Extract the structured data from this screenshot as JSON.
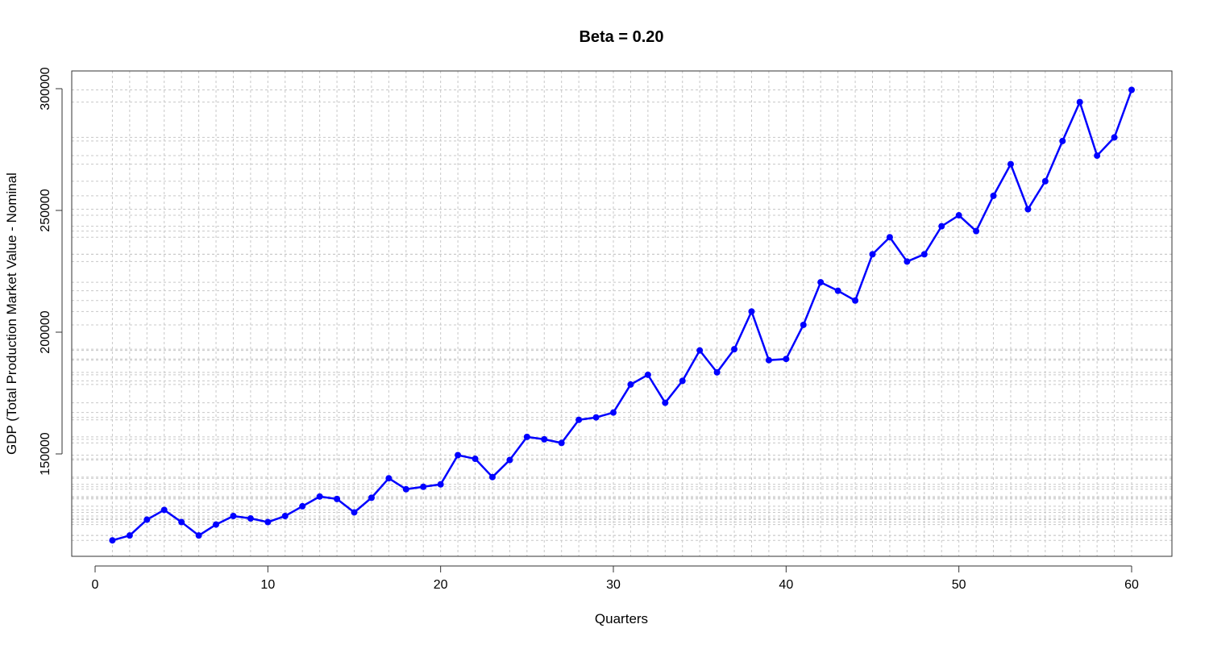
{
  "chart_data": {
    "type": "line",
    "title": "Beta = 0.20",
    "xlabel": "Quarters",
    "ylabel": "GDP (Total Production Market Value - Nominal",
    "xlim": [
      0,
      62
    ],
    "ylim": [
      114000,
      307000
    ],
    "x_ticks": [
      0,
      10,
      20,
      30,
      40,
      50,
      60
    ],
    "y_ticks": [
      150000,
      200000,
      250000,
      300000
    ],
    "grid": true,
    "series_color": "#0000ff",
    "grid_color": "#c8c8c8",
    "x": [
      1,
      2,
      3,
      4,
      5,
      6,
      7,
      8,
      9,
      10,
      11,
      12,
      13,
      14,
      15,
      16,
      17,
      18,
      19,
      20,
      21,
      22,
      23,
      24,
      25,
      26,
      27,
      28,
      29,
      30,
      31,
      32,
      33,
      34,
      35,
      36,
      37,
      38,
      39,
      40,
      41,
      42,
      43,
      44,
      45,
      46,
      47,
      48,
      49,
      50,
      51,
      52,
      53,
      54,
      55,
      56,
      57,
      58,
      59,
      60
    ],
    "series": [
      {
        "values": [
          114500,
          116500,
          123000,
          127000,
          122000,
          116500,
          121000,
          124500,
          123500,
          122000,
          124500,
          128500,
          132500,
          131500,
          126000,
          132000,
          140000,
          135500,
          136500,
          137500,
          149500,
          148000,
          140500,
          147500,
          157000,
          156000,
          154500,
          164000,
          165000,
          167000,
          178500,
          182500,
          171000,
          180000,
          192500,
          183500,
          193000,
          208500,
          188500,
          189000,
          203000,
          220500,
          217000,
          213000,
          232000,
          239000,
          229000,
          232000,
          243500,
          248000,
          241500,
          256000,
          269000,
          250500,
          262000,
          278500,
          294500,
          272500,
          280000,
          299500
        ]
      }
    ]
  }
}
